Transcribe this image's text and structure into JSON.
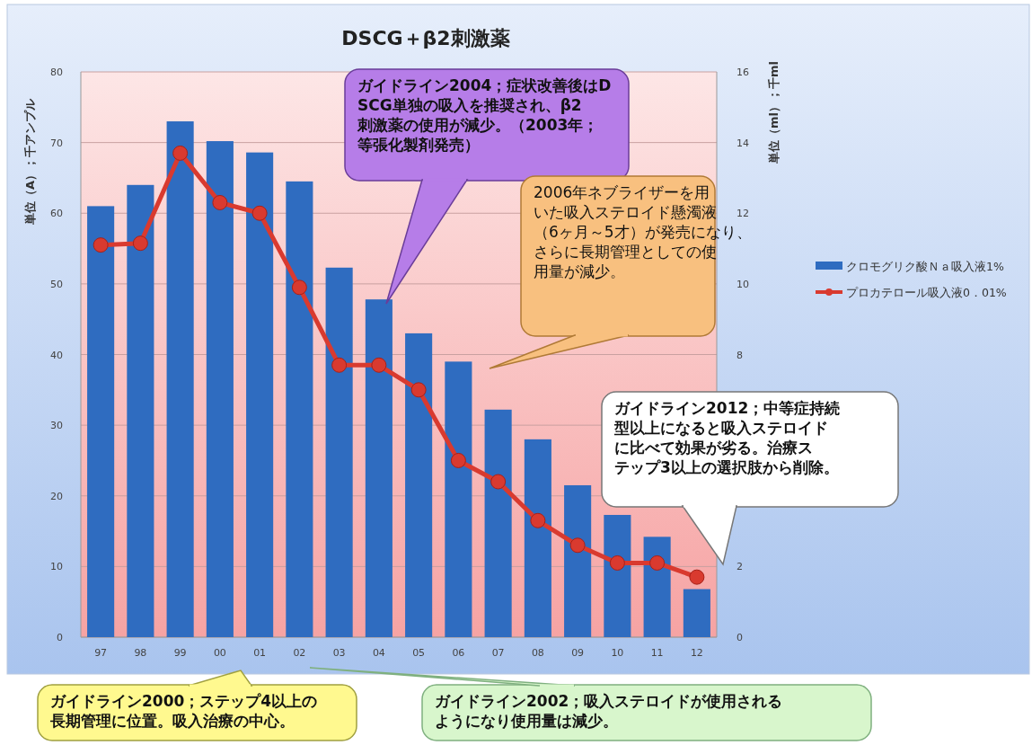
{
  "chart_data": {
    "type": "bar",
    "title": "DSCG＋β2刺激薬",
    "ylabel": "単位（A）；千アンプル",
    "y2label": "単位（ml）；千ml",
    "categories": [
      "97",
      "98",
      "99",
      "00",
      "01",
      "02",
      "03",
      "04",
      "05",
      "06",
      "07",
      "08",
      "09",
      "10",
      "11",
      "12"
    ],
    "series": [
      {
        "name": "クロモグリク酸Ｎａ吸入液1%",
        "color": "#2f6cc0",
        "values": [
          61,
          64,
          73,
          70.2,
          68.6,
          64.5,
          52.3,
          47.8,
          43,
          39,
          32.2,
          28,
          21.5,
          17.3,
          14.2,
          6.8
        ]
      },
      {
        "name": "プロカテロール吸入液0．01%",
        "type": "line",
        "axis": "y2",
        "color": "#d93a2f",
        "marker": "circle",
        "values": [
          11.1,
          11.15,
          13.7,
          12.3,
          12.0,
          9.9,
          7.7,
          7.7,
          7.0,
          5.0,
          4.4,
          3.3,
          2.6,
          2.1,
          2.1,
          1.7
        ]
      }
    ],
    "ylim": [
      0,
      80
    ],
    "yticks": [
      0,
      10,
      20,
      30,
      40,
      50,
      60,
      70,
      80
    ],
    "y2lim": [
      0,
      16
    ],
    "y2ticks": [
      0,
      2,
      8,
      10,
      12,
      14,
      16
    ],
    "grid": "y",
    "legend": "right",
    "annotations": [
      "ガイドライン2004；症状改善後はDSCG単独の吸入を推奨され、β2刺激薬の使用が減少。（2003年；等張化製剤発売）",
      "2006年ネブライザーを用いた吸入ステロイド懸濁液（6ヶ月～5才）が発売になり、さらに長期管理としての使用量が減少。",
      "ガイドライン2012；中等症持続型以上になると吸入ステロイドに比べて効果が劣る。治療ステップ3以上の選択肢から削除。",
      "ガイドライン2000；ステップ4以上の長期管理に位置。吸入治療の中心。",
      "ガイドライン2002；吸入ステロイドが使用されるようになり使用量は減少。"
    ]
  }
}
